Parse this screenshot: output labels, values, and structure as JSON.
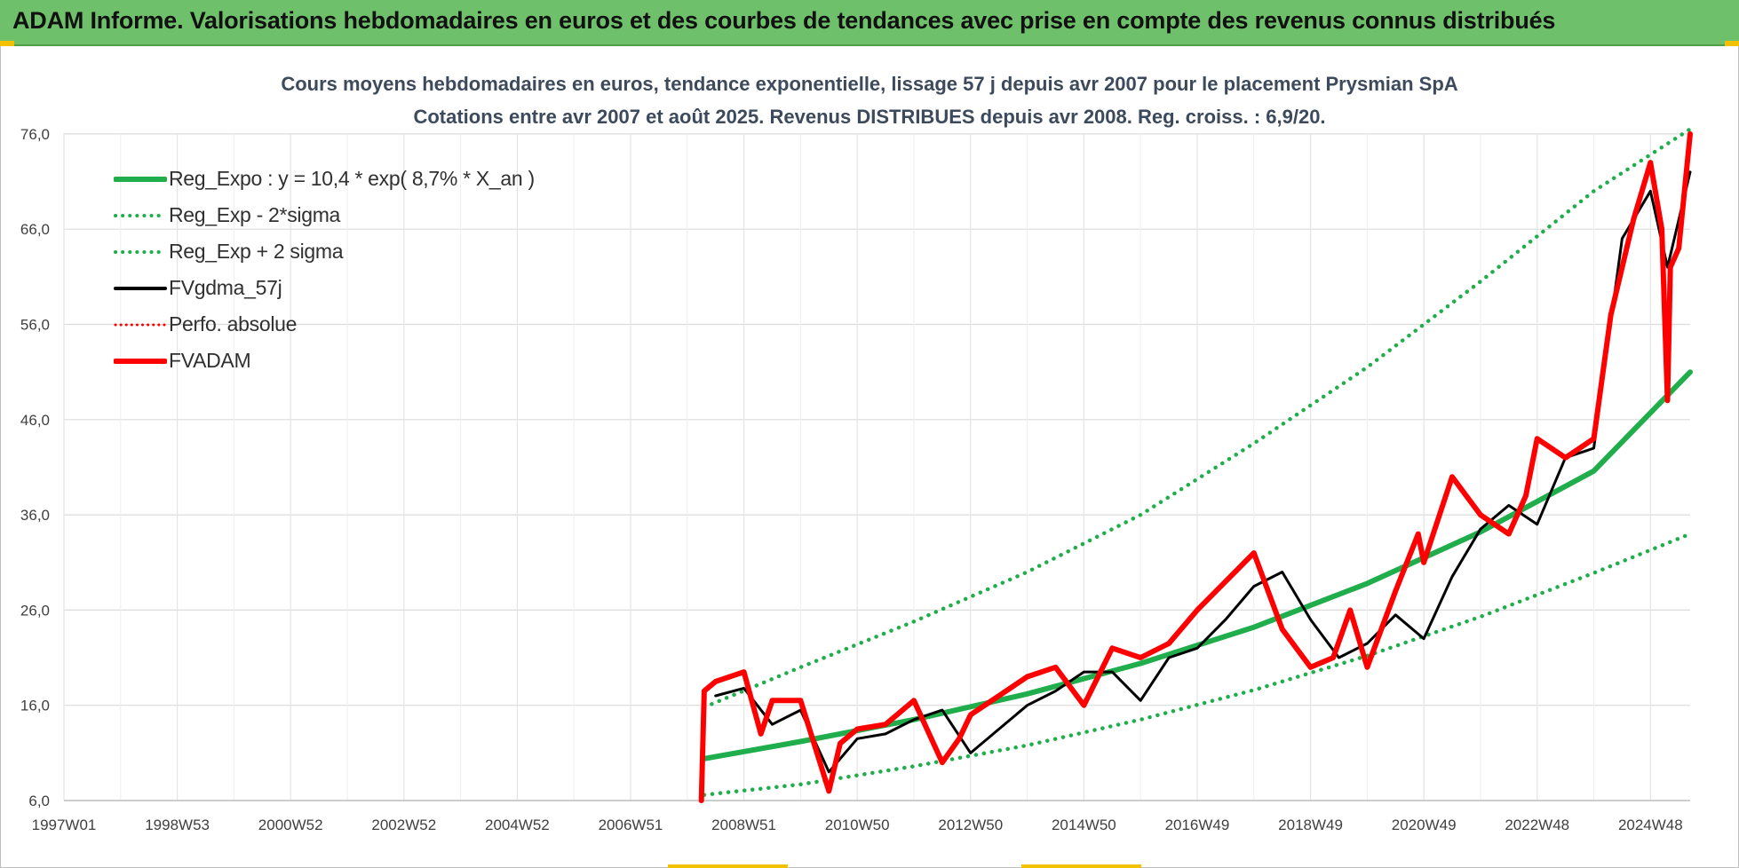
{
  "header": {
    "title": "ADAM Informe. Valorisations hebdomadaires en euros et des courbes de tendances avec prise en compte des revenus connus distribués"
  },
  "chart_data": {
    "type": "line",
    "title": "Cours moyens hebdomadaires en euros, tendance exponentielle, lissage 57 j depuis avr 2007 pour le placement Prysmian SpA",
    "subtitle": "Cotations entre avr 2007 et août 2025. Revenus DISTRIBUES depuis avr 2008. Reg. croiss. : 6,9/20.",
    "xlabel": "",
    "ylabel": "",
    "ylim": [
      6,
      78
    ],
    "xlim": [
      1997.0,
      2025.7
    ],
    "grid": true,
    "legend_position": "top-left",
    "y_ticks": [
      "6,0",
      "16,0",
      "26,0",
      "36,0",
      "46,0",
      "56,0",
      "66,0",
      "76,0"
    ],
    "x_ticks": [
      {
        "label": "1997W01",
        "x": 1997.0
      },
      {
        "label": "1998W53",
        "x": 1999.0
      },
      {
        "label": "2000W52",
        "x": 2001.0
      },
      {
        "label": "2002W52",
        "x": 2003.0
      },
      {
        "label": "2004W52",
        "x": 2005.0
      },
      {
        "label": "2006W51",
        "x": 2007.0
      },
      {
        "label": "2008W51",
        "x": 2009.0
      },
      {
        "label": "2010W50",
        "x": 2011.0
      },
      {
        "label": "2012W50",
        "x": 2013.0
      },
      {
        "label": "2014W50",
        "x": 2015.0
      },
      {
        "label": "2016W49",
        "x": 2017.0
      },
      {
        "label": "2018W49",
        "x": 2019.0
      },
      {
        "label": "2020W49",
        "x": 2021.0
      },
      {
        "label": "2022W48",
        "x": 2023.0
      },
      {
        "label": "2024W48",
        "x": 2025.0
      }
    ],
    "series": [
      {
        "name": "Reg_Expo : y = 10,4 * exp( 8,7% *  X_an )",
        "style": "solid-thick",
        "color": "#1fae4b",
        "x": [
          2008.3,
          2010.0,
          2012.0,
          2014.0,
          2016.0,
          2018.0,
          2020.0,
          2022.0,
          2024.0,
          2025.7
        ],
        "y": [
          10.4,
          12.2,
          14.5,
          17.2,
          20.4,
          24.2,
          28.8,
          34.2,
          40.6,
          51.0
        ]
      },
      {
        "name": "Reg_Exp - 2*sigma",
        "style": "dotted",
        "color": "#1fae4b",
        "x": [
          2008.3,
          2010.0,
          2012.0,
          2014.0,
          2016.0,
          2018.0,
          2020.0,
          2022.0,
          2024.0,
          2025.7
        ],
        "y": [
          6.6,
          7.7,
          9.6,
          11.8,
          14.5,
          17.6,
          21.2,
          25.3,
          29.9,
          34.0
        ]
      },
      {
        "name": "Reg_Exp + 2 sigma",
        "style": "dotted",
        "color": "#1fae4b",
        "x": [
          2008.3,
          2010.0,
          2012.0,
          2014.0,
          2016.0,
          2018.0,
          2020.0,
          2022.0,
          2024.0,
          2025.7
        ],
        "y": [
          15.8,
          20.0,
          24.8,
          30.0,
          36.0,
          43.5,
          51.5,
          60.5,
          70.0,
          76.5
        ]
      },
      {
        "name": "FVgdma_57j",
        "style": "solid",
        "color": "#000000",
        "x": [
          2008.5,
          2009.0,
          2009.5,
          2010.0,
          2010.5,
          2011.0,
          2011.5,
          2012.0,
          2012.5,
          2013.0,
          2013.5,
          2014.0,
          2014.5,
          2015.0,
          2015.5,
          2016.0,
          2016.5,
          2017.0,
          2017.5,
          2018.0,
          2018.5,
          2019.0,
          2019.5,
          2020.0,
          2020.5,
          2021.0,
          2021.5,
          2022.0,
          2022.5,
          2023.0,
          2023.5,
          2024.0,
          2024.5,
          2025.0,
          2025.3,
          2025.7
        ],
        "y": [
          17.0,
          17.8,
          14.0,
          15.5,
          9.0,
          12.5,
          13.0,
          14.5,
          15.5,
          11.0,
          13.5,
          16.0,
          17.5,
          19.5,
          19.5,
          16.5,
          21.0,
          22.0,
          25.0,
          28.5,
          30.0,
          25.0,
          21.0,
          22.5,
          25.5,
          23.0,
          29.5,
          34.5,
          37.0,
          35.0,
          42.0,
          43.0,
          65.0,
          70.0,
          62.0,
          72.0
        ]
      },
      {
        "name": "Perfo. absolue",
        "style": "dotted",
        "color": "#ff0000",
        "x": [],
        "y": []
      },
      {
        "name": "FVADAM",
        "style": "solid-thick",
        "color": "#ff0000",
        "x": [
          2008.25,
          2008.3,
          2008.5,
          2009.0,
          2009.3,
          2009.5,
          2010.0,
          2010.5,
          2010.7,
          2011.0,
          2011.5,
          2012.0,
          2012.5,
          2012.8,
          2013.0,
          2013.5,
          2014.0,
          2014.5,
          2015.0,
          2015.5,
          2016.0,
          2016.5,
          2017.0,
          2017.5,
          2018.0,
          2018.5,
          2019.0,
          2019.4,
          2019.7,
          2020.0,
          2020.5,
          2020.9,
          2021.0,
          2021.5,
          2022.0,
          2022.5,
          2022.8,
          2023.0,
          2023.5,
          2024.0,
          2024.3,
          2024.7,
          2025.0,
          2025.2,
          2025.3,
          2025.35,
          2025.5,
          2025.7
        ],
        "y": [
          6.0,
          17.5,
          18.5,
          19.5,
          13.0,
          16.5,
          16.5,
          7.0,
          12.0,
          13.5,
          14.0,
          16.5,
          10.0,
          12.5,
          15.0,
          17.0,
          19.0,
          20.0,
          16.0,
          22.0,
          21.0,
          22.5,
          26.0,
          29.0,
          32.0,
          24.0,
          20.0,
          21.0,
          26.0,
          20.0,
          28.0,
          34.0,
          31.0,
          40.0,
          36.0,
          34.0,
          38.0,
          44.0,
          42.0,
          44.0,
          57.0,
          67.0,
          73.0,
          66.0,
          48.0,
          62.0,
          64.0,
          76.0
        ]
      }
    ]
  }
}
